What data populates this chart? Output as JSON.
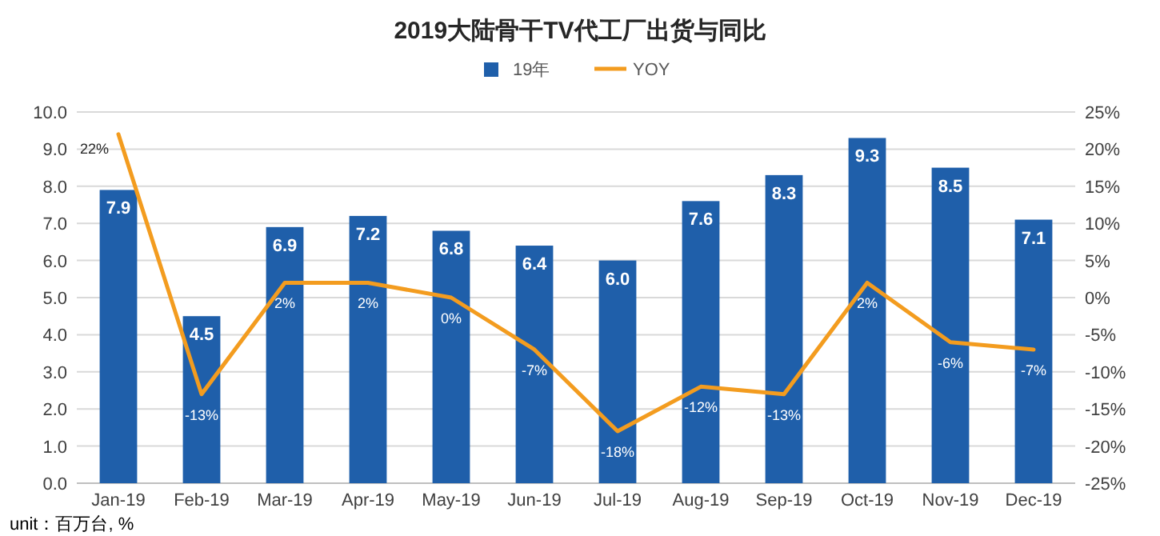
{
  "chart_data": {
    "type": "bar",
    "title": "2019大陆骨干TV代工厂出货与同比",
    "categories": [
      "Jan-19",
      "Feb-19",
      "Mar-19",
      "Apr-19",
      "May-19",
      "Jun-19",
      "Jul-19",
      "Aug-19",
      "Sep-19",
      "Oct-19",
      "Nov-19",
      "Dec-19"
    ],
    "series": [
      {
        "name": "19年",
        "color": "#1f5faa",
        "values": [
          7.9,
          4.5,
          6.9,
          7.2,
          6.8,
          6.4,
          6.0,
          7.6,
          8.3,
          9.3,
          8.5,
          7.1
        ],
        "value_labels": [
          "7.9",
          "4.5",
          "6.9",
          "7.2",
          "6.8",
          "6.4",
          "6.0",
          "7.6",
          "8.3",
          "9.3",
          "8.5",
          "7.1"
        ]
      },
      {
        "name": "YOY",
        "type": "line",
        "axis": "y2",
        "color": "#f39c1f",
        "values": [
          22,
          -13,
          2,
          2,
          0,
          -7,
          -18,
          -12,
          -13,
          2,
          -6,
          -7
        ],
        "value_labels": [
          "22%",
          "-13%",
          "2%",
          "2%",
          "0%",
          "-7%",
          "-18%",
          "-12%",
          "-13%",
          "2%",
          "-6%",
          "-7%"
        ]
      }
    ],
    "ylim": [
      0,
      10
    ],
    "yticks": [
      {
        "value": 0,
        "label": "0.0"
      },
      {
        "value": 1,
        "label": "1.0"
      },
      {
        "value": 2,
        "label": "2.0"
      },
      {
        "value": 3,
        "label": "3.0"
      },
      {
        "value": 4,
        "label": "4.0"
      },
      {
        "value": 5,
        "label": "5.0"
      },
      {
        "value": 6,
        "label": "6.0"
      },
      {
        "value": 7,
        "label": "7.0"
      },
      {
        "value": 8,
        "label": "8.0"
      },
      {
        "value": 9,
        "label": "9.0"
      },
      {
        "value": 10,
        "label": "10.0"
      }
    ],
    "y2lim": [
      -25,
      25
    ],
    "y2ticks": [
      {
        "value": -25,
        "label": "-25%"
      },
      {
        "value": -20,
        "label": "-20%"
      },
      {
        "value": -15,
        "label": "-15%"
      },
      {
        "value": -10,
        "label": "-10%"
      },
      {
        "value": -5,
        "label": "-5%"
      },
      {
        "value": 0,
        "label": "0%"
      },
      {
        "value": 5,
        "label": "5%"
      },
      {
        "value": 10,
        "label": "10%"
      },
      {
        "value": 15,
        "label": "15%"
      },
      {
        "value": 20,
        "label": "20%"
      },
      {
        "value": 25,
        "label": "25%"
      }
    ],
    "grid": "y",
    "legend": "top",
    "marker": "none",
    "annotations": [
      "unit：百万台, %"
    ]
  }
}
